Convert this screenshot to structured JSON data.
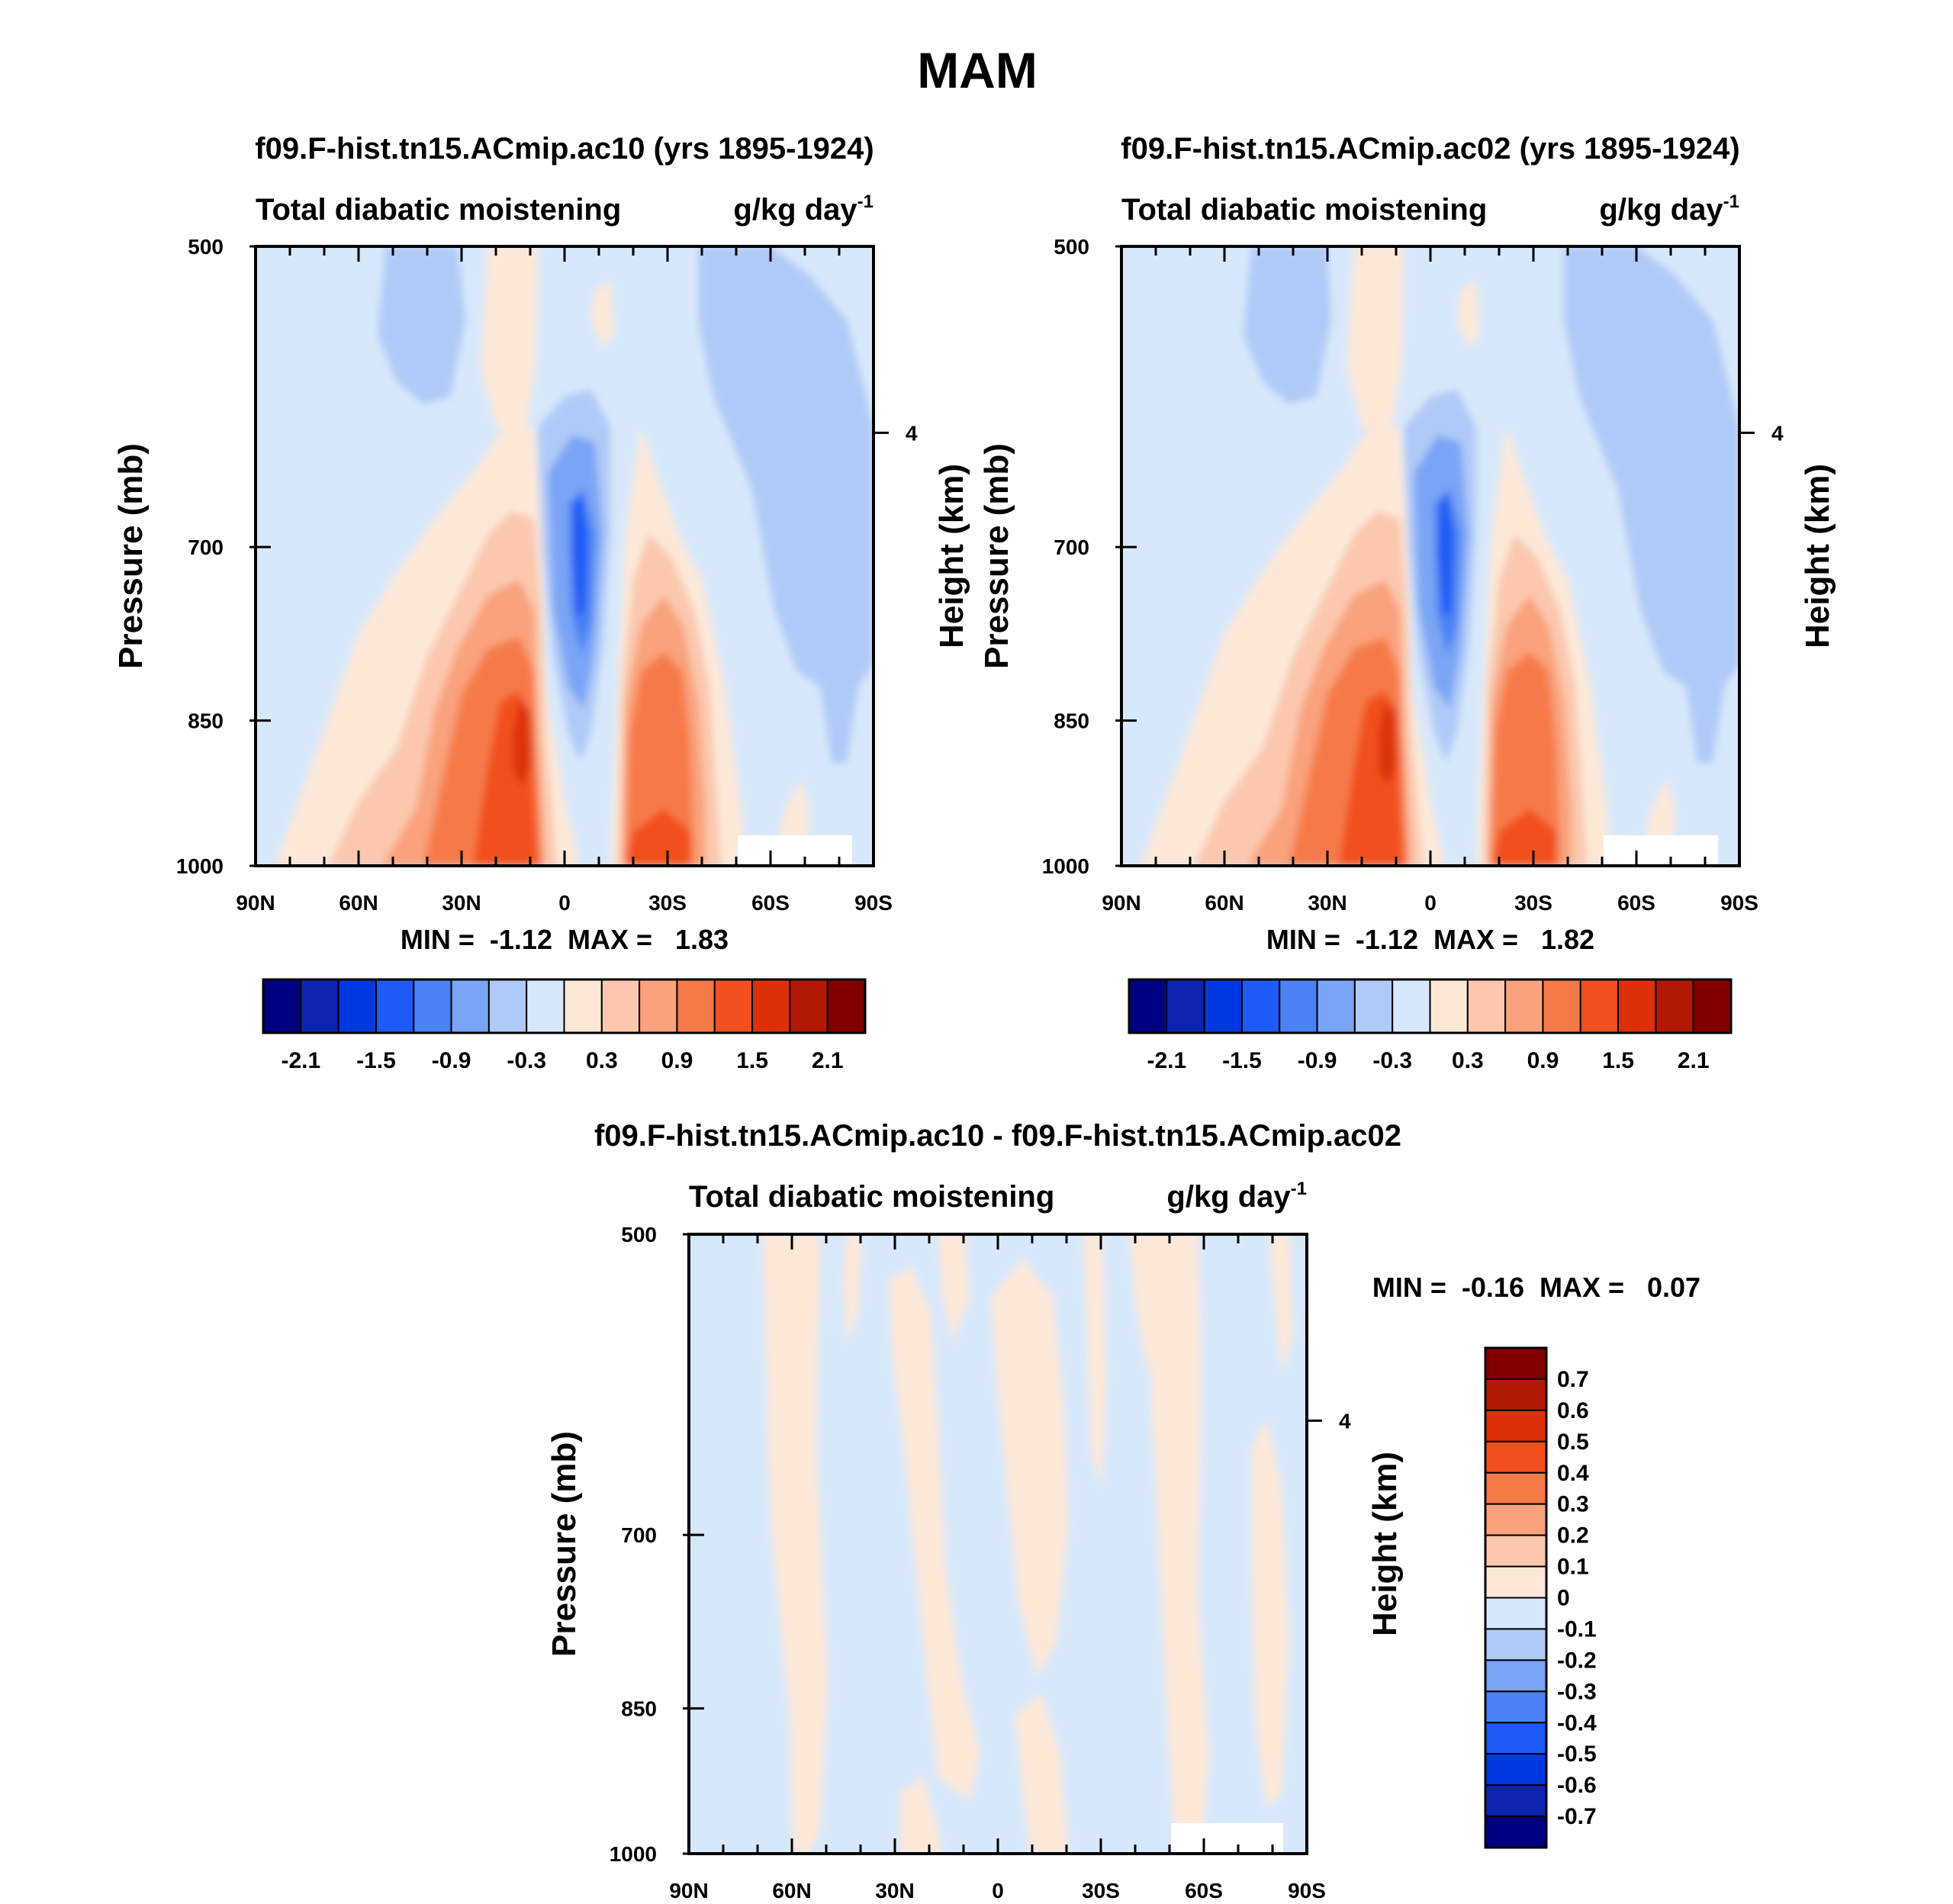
{
  "page_title": "MAM",
  "colors": {
    "full_scale": [
      "#000080",
      "#0c24b0",
      "#0038e0",
      "#1e5af5",
      "#4a82f5",
      "#7aa4f5",
      "#b0caf8",
      "#d8e8fb",
      "#fde8d8",
      "#fbc8ae",
      "#f9a27c",
      "#f67a48",
      "#f2501e",
      "#dd3008",
      "#b01a04",
      "#800000"
    ],
    "diff_scale": [
      "#000080",
      "#0c24b0",
      "#0038e0",
      "#1e5af5",
      "#4a82f5",
      "#7aa4f5",
      "#b0caf8",
      "#d8e8fb",
      "#fde8d8",
      "#fbc8ae",
      "#f9a27c",
      "#f67a48",
      "#f2501e",
      "#dd3008",
      "#b01a04",
      "#800000"
    ]
  },
  "chart_data": [
    {
      "type": "heatmap",
      "title": "f09.F-hist.tn15.ACmip.ac10 (yrs 1895-1924)",
      "left_string": "Total diabatic moistening",
      "units": "g/kg day",
      "units_sup": "-1",
      "ylabel": "Pressure (mb)",
      "ylabel_right": "Height (km)",
      "y_ticks": [
        "500",
        "700",
        "850",
        "1000"
      ],
      "y_right_ticks": [
        "4"
      ],
      "x_ticks": [
        "90N",
        "60N",
        "30N",
        "0",
        "30S",
        "60S",
        "90S"
      ],
      "min_max": "MIN =  -1.12  MAX =   1.83",
      "colorbar_labels": [
        "-2.1",
        "-1.5",
        "-0.9",
        "-0.3",
        "0.3",
        "0.9",
        "1.5",
        "2.1"
      ]
    },
    {
      "type": "heatmap",
      "title": "f09.F-hist.tn15.ACmip.ac02 (yrs 1895-1924)",
      "left_string": "Total diabatic moistening",
      "units": "g/kg day",
      "units_sup": "-1",
      "ylabel": "Pressure (mb)",
      "ylabel_right": "Height (km)",
      "y_ticks": [
        "500",
        "700",
        "850",
        "1000"
      ],
      "y_right_ticks": [
        "4"
      ],
      "x_ticks": [
        "90N",
        "60N",
        "30N",
        "0",
        "30S",
        "60S",
        "90S"
      ],
      "min_max": "MIN =  -1.12  MAX =   1.82",
      "colorbar_labels": [
        "-2.1",
        "-1.5",
        "-0.9",
        "-0.3",
        "0.3",
        "0.9",
        "1.5",
        "2.1"
      ]
    },
    {
      "type": "heatmap",
      "title": "f09.F-hist.tn15.ACmip.ac10 - f09.F-hist.tn15.ACmip.ac02",
      "left_string": "Total diabatic moistening",
      "units": "g/kg day",
      "units_sup": "-1",
      "ylabel": "Pressure (mb)",
      "ylabel_right": "Height (km)",
      "y_ticks": [
        "500",
        "700",
        "850",
        "1000"
      ],
      "y_right_ticks": [
        "4"
      ],
      "x_ticks": [
        "90N",
        "60N",
        "30N",
        "0",
        "30S",
        "60S",
        "90S"
      ],
      "min_max": "MIN =  -0.16  MAX =   0.07",
      "colorbar_labels": [
        "0.7",
        "0.6",
        "0.5",
        "0.4",
        "0.3",
        "0.2",
        "0.1",
        "0",
        "-0.1",
        "-0.2",
        "-0.3",
        "-0.4",
        "-0.5",
        "-0.6",
        "-0.7"
      ]
    }
  ]
}
